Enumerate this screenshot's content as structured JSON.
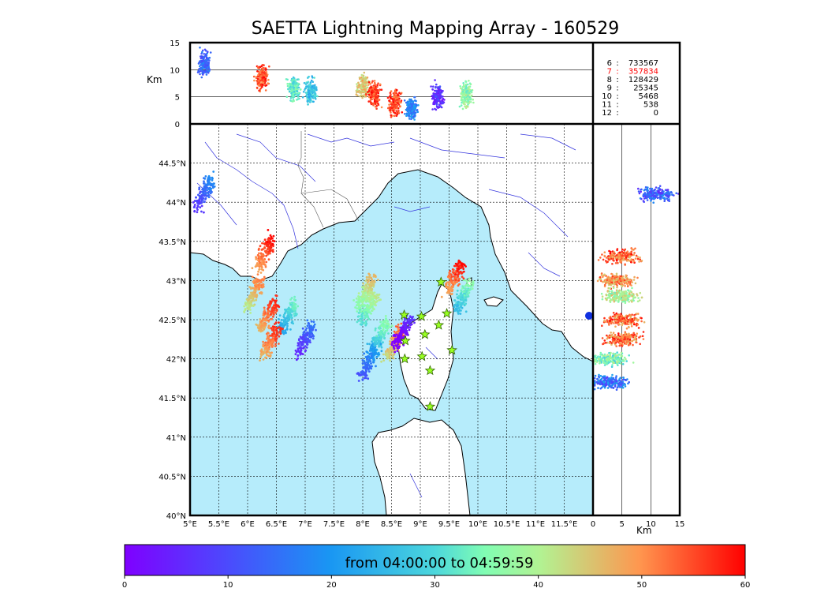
{
  "title": "SAETTA Lightning Mapping Array - 160529",
  "colors": {
    "sea": "#b6ecfb",
    "land": "#ffffff",
    "river": "#3333dd",
    "station": "#99ff22",
    "station_edge": "#336600",
    "highlight": "#ff0000",
    "frame": "#000000"
  },
  "chart_data": [
    {
      "name": "plan-view",
      "type": "scatter",
      "description_of_axes": "map",
      "xlim": [
        5,
        12
      ],
      "ylim": [
        40,
        45
      ],
      "x_ticks": [
        "5°E",
        "5.5°E",
        "6°E",
        "6.5°E",
        "7°E",
        "7.5°E",
        "8°E",
        "8.5°E",
        "9°E",
        "9.5°E",
        "10°E",
        "10.5°E",
        "11°E",
        "11.5°E"
      ],
      "y_ticks": [
        "40°N",
        "40.5°N",
        "41°N",
        "41.5°N",
        "42°N",
        "42.5°N",
        "43°N",
        "43.5°N",
        "44°N",
        "44.5°N"
      ],
      "grid": true,
      "stations": [
        [
          8.72,
          42.56
        ],
        [
          9.02,
          42.54
        ],
        [
          9.36,
          42.98
        ],
        [
          9.46,
          42.58
        ],
        [
          9.32,
          42.43
        ],
        [
          9.08,
          42.31
        ],
        [
          8.74,
          42.23
        ],
        [
          9.55,
          42.11
        ],
        [
          8.73,
          42.0
        ],
        [
          9.03,
          42.03
        ],
        [
          9.17,
          41.85
        ],
        [
          9.17,
          41.39
        ]
      ],
      "storm_cells": [
        {
          "lon": 5.25,
          "lat": 44.12,
          "time": 17
        },
        {
          "lon": 6.3,
          "lat": 43.35,
          "time": 58
        },
        {
          "lon": 6.1,
          "lat": 42.82,
          "time": 50
        },
        {
          "lon": 6.35,
          "lat": 42.55,
          "time": 56
        },
        {
          "lon": 6.7,
          "lat": 42.55,
          "time": 32
        },
        {
          "lon": 6.4,
          "lat": 42.22,
          "time": 56
        },
        {
          "lon": 7.0,
          "lat": 42.25,
          "time": 14
        },
        {
          "lon": 8.05,
          "lat": 42.85,
          "time": 45
        },
        {
          "lon": 8.1,
          "lat": 42.65,
          "time": 40
        },
        {
          "lon": 8.3,
          "lat": 42.3,
          "time": 35
        },
        {
          "lon": 8.55,
          "lat": 42.2,
          "time": 52
        },
        {
          "lon": 8.1,
          "lat": 41.95,
          "time": 20
        },
        {
          "lon": 8.7,
          "lat": 42.35,
          "time": 6
        },
        {
          "lon": 9.75,
          "lat": 42.8,
          "time": 35
        },
        {
          "lon": 9.6,
          "lat": 43.05,
          "time": 58
        }
      ]
    },
    {
      "name": "lon-altitude",
      "type": "scatter",
      "xlim": [
        5,
        12
      ],
      "ylim": [
        0,
        15
      ],
      "ylabel": "Km",
      "y_ticks": [
        "0",
        "5",
        "10",
        "15"
      ],
      "cells": [
        {
          "lon": 5.25,
          "z": 11.2,
          "time": 17
        },
        {
          "lon": 6.25,
          "z": 8.5,
          "time": 58
        },
        {
          "lon": 6.8,
          "z": 6.5,
          "time": 35
        },
        {
          "lon": 7.1,
          "z": 6.0,
          "time": 30
        },
        {
          "lon": 8.0,
          "z": 7.0,
          "time": 48
        },
        {
          "lon": 8.2,
          "z": 5.5,
          "time": 58
        },
        {
          "lon": 8.55,
          "z": 4.0,
          "time": 58
        },
        {
          "lon": 8.85,
          "z": 3.0,
          "time": 20
        },
        {
          "lon": 9.3,
          "z": 5.0,
          "time": 10
        },
        {
          "lon": 9.8,
          "z": 5.5,
          "time": 40
        }
      ]
    },
    {
      "name": "altitude-lat",
      "type": "scatter",
      "xlim": [
        0,
        15
      ],
      "ylim": [
        40,
        45
      ],
      "xlabel": "Km",
      "x_ticks": [
        "0",
        "5",
        "10",
        "15"
      ],
      "cells": [
        {
          "z": 5,
          "lat": 43.3,
          "time": 58
        },
        {
          "z": 4,
          "lat": 43.0,
          "time": 55
        },
        {
          "z": 5,
          "lat": 42.8,
          "time": 45
        },
        {
          "z": 5,
          "lat": 42.5,
          "time": 58
        },
        {
          "z": 5,
          "lat": 42.25,
          "time": 58
        },
        {
          "z": 3,
          "lat": 42.0,
          "time": 40
        },
        {
          "z": 3,
          "lat": 41.7,
          "time": 20
        },
        {
          "z": 11,
          "lat": 44.1,
          "time": 17
        }
      ]
    },
    {
      "name": "time-colorbar",
      "type": "heatmap",
      "xlim": [
        0,
        60
      ],
      "x_ticks": [
        "0",
        "10",
        "20",
        "30",
        "40",
        "50",
        "60"
      ],
      "label": "from 04:00:00 to 04:59:59",
      "colormap": "rainbow"
    }
  ],
  "stats": [
    {
      "key": "6",
      "value": "733567",
      "highlight": false
    },
    {
      "key": "7",
      "value": "357834",
      "highlight": true
    },
    {
      "key": "8",
      "value": "128429",
      "highlight": false
    },
    {
      "key": "9",
      "value": "25345",
      "highlight": false
    },
    {
      "key": "10",
      "value": "5468",
      "highlight": false
    },
    {
      "key": "11",
      "value": "538",
      "highlight": false
    },
    {
      "key": "12",
      "value": "0",
      "highlight": false
    }
  ]
}
